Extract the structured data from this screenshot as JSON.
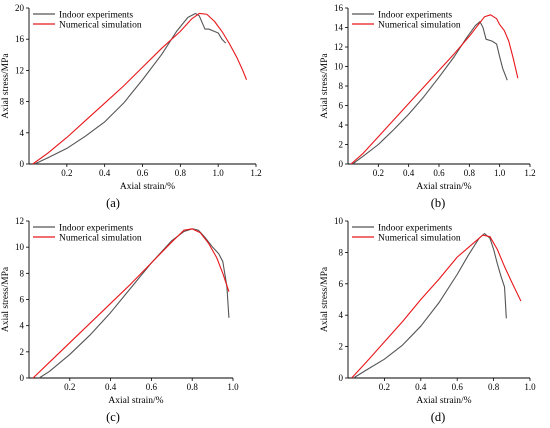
{
  "chart_data": [
    {
      "type": "line",
      "panel_label": "(a)",
      "xlabel": "Axial strain/%",
      "ylabel": "Axial stress/MPa",
      "xlim": [
        0,
        1.2
      ],
      "ylim": [
        0,
        20
      ],
      "xticks": [
        0.2,
        0.4,
        0.6,
        0.8,
        1.0,
        1.2
      ],
      "yticks": [
        0,
        4,
        8,
        12,
        16,
        20
      ],
      "xtick_labels": [
        "0.2",
        "0.4",
        "0.6",
        "0.8",
        "1.0",
        "1.2"
      ],
      "ytick_labels": [
        "0",
        "4",
        "8",
        "12",
        "16",
        "20"
      ],
      "legend_position": "top-left",
      "series": [
        {
          "name": "Indoor experiments",
          "color": "#555555",
          "x": [
            0.03,
            0.1,
            0.2,
            0.3,
            0.4,
            0.5,
            0.6,
            0.7,
            0.78,
            0.84,
            0.88,
            0.9,
            0.93,
            0.95,
            0.98,
            1.0,
            1.02,
            1.04
          ],
          "y": [
            0,
            0.8,
            2.0,
            3.6,
            5.4,
            7.8,
            10.8,
            14.0,
            17.0,
            18.8,
            19.3,
            19.0,
            17.3,
            17.3,
            17.0,
            16.8,
            16.0,
            15.5
          ]
        },
        {
          "name": "Numerical simulation",
          "color": "#e8161a",
          "x": [
            0.02,
            0.1,
            0.2,
            0.3,
            0.4,
            0.5,
            0.6,
            0.7,
            0.8,
            0.86,
            0.9,
            0.94,
            0.98,
            1.02,
            1.06,
            1.1,
            1.13,
            1.15
          ],
          "y": [
            0,
            1.4,
            3.4,
            5.6,
            7.8,
            10.0,
            12.4,
            14.8,
            17.0,
            18.6,
            19.3,
            19.2,
            18.3,
            17.0,
            15.4,
            13.6,
            12.0,
            10.8
          ]
        }
      ]
    },
    {
      "type": "line",
      "panel_label": "(b)",
      "xlabel": "Axial strain/%",
      "ylabel": "Axial stress/MPa",
      "xlim": [
        0,
        1.2
      ],
      "ylim": [
        0,
        16
      ],
      "xticks": [
        0.2,
        0.4,
        0.6,
        0.8,
        1.0,
        1.2
      ],
      "yticks": [
        0,
        2,
        4,
        6,
        8,
        10,
        12,
        14,
        16
      ],
      "xtick_labels": [
        "0.2",
        "0.4",
        "0.6",
        "0.8",
        "1.0",
        "1.2"
      ],
      "ytick_labels": [
        "0",
        "2",
        "4",
        "6",
        "8",
        "10",
        "12",
        "14",
        "16"
      ],
      "legend_position": "top-left",
      "series": [
        {
          "name": "Indoor experiments",
          "color": "#555555",
          "x": [
            0.03,
            0.1,
            0.2,
            0.3,
            0.4,
            0.5,
            0.6,
            0.7,
            0.78,
            0.84,
            0.87,
            0.89,
            0.91,
            0.95,
            0.98,
            1.0,
            1.02,
            1.05
          ],
          "y": [
            0,
            0.8,
            2.0,
            3.5,
            5.1,
            6.9,
            8.9,
            11.0,
            12.9,
            14.2,
            14.6,
            14.0,
            12.8,
            12.6,
            12.3,
            11.0,
            9.8,
            8.6
          ]
        },
        {
          "name": "Numerical simulation",
          "color": "#e8161a",
          "x": [
            0.02,
            0.1,
            0.2,
            0.3,
            0.4,
            0.5,
            0.6,
            0.7,
            0.8,
            0.86,
            0.9,
            0.94,
            0.98,
            1.0,
            1.03,
            1.06,
            1.09,
            1.12
          ],
          "y": [
            0,
            1.1,
            2.8,
            4.5,
            6.2,
            7.9,
            9.6,
            11.3,
            13.1,
            14.3,
            15.1,
            15.3,
            14.9,
            14.3,
            13.7,
            12.6,
            10.8,
            8.8
          ]
        }
      ]
    },
    {
      "type": "line",
      "panel_label": "(c)",
      "xlabel": "Axial strain/%",
      "ylabel": "Axial stress/MPa",
      "xlim": [
        0,
        1.0
      ],
      "ylim": [
        0,
        12
      ],
      "xticks": [
        0.2,
        0.4,
        0.6,
        0.8,
        1.0
      ],
      "yticks": [
        0,
        2,
        4,
        6,
        8,
        10,
        12
      ],
      "xtick_labels": [
        "0.2",
        "0.4",
        "0.6",
        "0.8",
        "1.0"
      ],
      "ytick_labels": [
        "0",
        "2",
        "4",
        "6",
        "8",
        "10",
        "12"
      ],
      "legend_position": "top-left",
      "series": [
        {
          "name": "Indoor experiments",
          "color": "#555555",
          "x": [
            0.05,
            0.1,
            0.2,
            0.3,
            0.4,
            0.5,
            0.6,
            0.7,
            0.76,
            0.8,
            0.83,
            0.86,
            0.9,
            0.93,
            0.95,
            0.97,
            0.98
          ],
          "y": [
            0,
            0.5,
            1.8,
            3.3,
            5.0,
            6.9,
            8.8,
            10.5,
            11.2,
            11.4,
            11.3,
            10.8,
            10.0,
            9.5,
            8.9,
            7.0,
            4.6
          ]
        },
        {
          "name": "Numerical simulation",
          "color": "#e8161a",
          "x": [
            0.02,
            0.1,
            0.2,
            0.3,
            0.4,
            0.5,
            0.6,
            0.7,
            0.76,
            0.8,
            0.84,
            0.88,
            0.92,
            0.95,
            0.98
          ],
          "y": [
            0,
            1.2,
            2.7,
            4.2,
            5.7,
            7.2,
            8.8,
            10.4,
            11.3,
            11.4,
            11.1,
            10.3,
            9.2,
            8.0,
            6.6
          ]
        }
      ]
    },
    {
      "type": "line",
      "panel_label": "(d)",
      "xlabel": "Axial strain/%",
      "ylabel": "Axial stress/MPa",
      "xlim": [
        0,
        1.0
      ],
      "ylim": [
        0,
        10
      ],
      "xticks": [
        0.2,
        0.4,
        0.6,
        0.8,
        1.0
      ],
      "yticks": [
        0,
        2,
        4,
        6,
        8,
        10
      ],
      "xtick_labels": [
        "0.2",
        "0.4",
        "0.6",
        "0.8",
        "1.0"
      ],
      "ytick_labels": [
        "0",
        "2",
        "4",
        "6",
        "8",
        "10"
      ],
      "legend_position": "top-left",
      "series": [
        {
          "name": "Indoor experiments",
          "color": "#555555",
          "x": [
            0.03,
            0.1,
            0.2,
            0.3,
            0.4,
            0.5,
            0.6,
            0.66,
            0.72,
            0.75,
            0.78,
            0.8,
            0.82,
            0.84,
            0.86,
            0.87
          ],
          "y": [
            0,
            0.5,
            1.2,
            2.1,
            3.3,
            4.8,
            6.6,
            7.8,
            8.9,
            9.2,
            8.9,
            8.2,
            7.3,
            6.5,
            5.8,
            3.8
          ]
        },
        {
          "name": "Numerical simulation",
          "color": "#e8161a",
          "x": [
            0.02,
            0.1,
            0.2,
            0.3,
            0.4,
            0.5,
            0.6,
            0.7,
            0.74,
            0.78,
            0.82,
            0.86,
            0.9,
            0.95
          ],
          "y": [
            0,
            1.0,
            2.3,
            3.6,
            5.0,
            6.3,
            7.7,
            8.7,
            9.1,
            9.0,
            8.2,
            7.1,
            6.1,
            4.9
          ]
        }
      ]
    }
  ]
}
